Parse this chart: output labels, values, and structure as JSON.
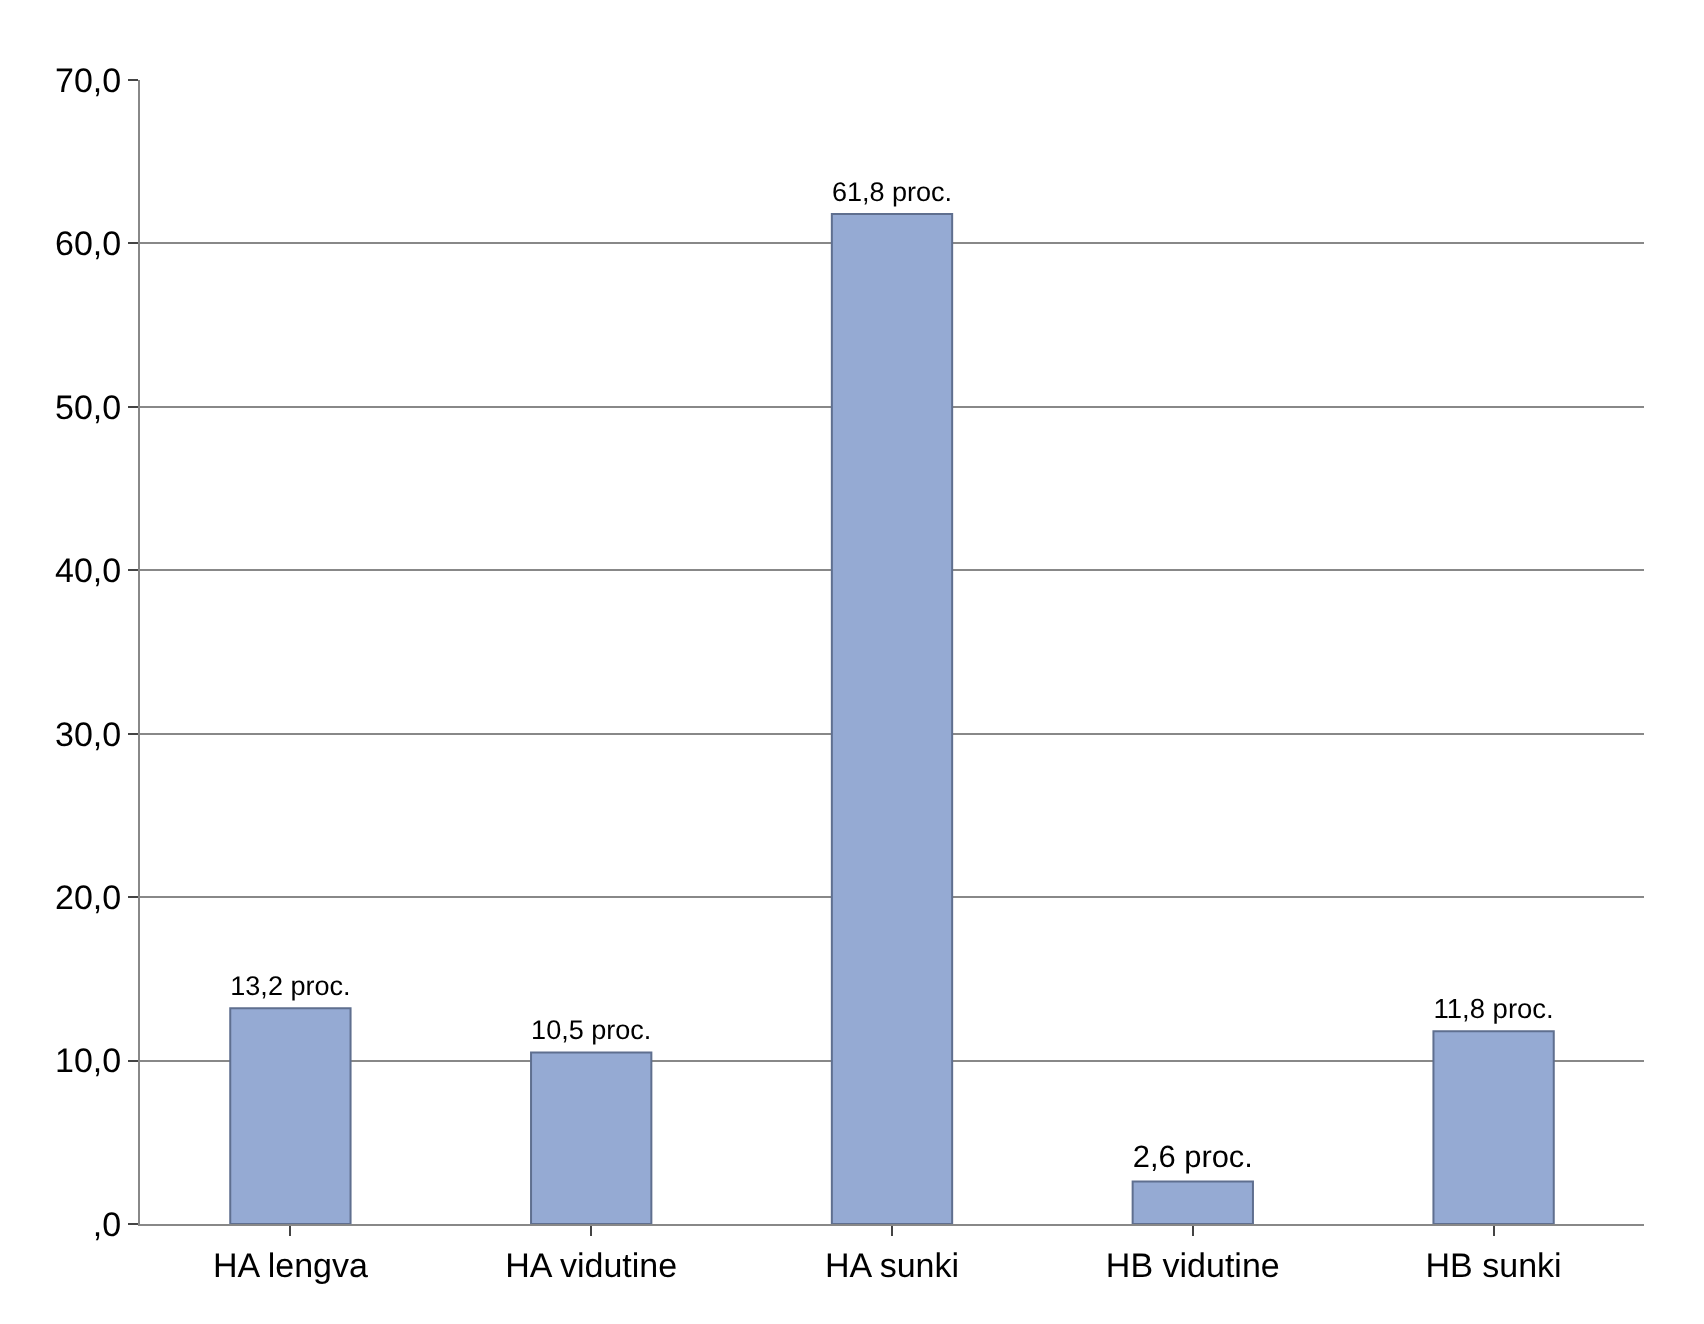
{
  "chart_data": {
    "type": "bar",
    "categories": [
      "HA lengva",
      "HA vidutine",
      "HA sunki",
      "HB vidutine",
      "HB sunki"
    ],
    "values": [
      13.2,
      10.5,
      61.8,
      2.6,
      11.8
    ],
    "value_labels": [
      "13,2 proc.",
      "10,5 proc.",
      "61,8 proc.",
      "2,6 proc.",
      "11,8 proc."
    ],
    "color": "#95aad3",
    "ylim": [
      0,
      70
    ],
    "yticks": [
      {
        "value": 0,
        "label": ",0"
      },
      {
        "value": 10,
        "label": "10,0"
      },
      {
        "value": 20,
        "label": "20,0"
      },
      {
        "value": 30,
        "label": "30,0"
      },
      {
        "value": 40,
        "label": "40,0"
      },
      {
        "value": 50,
        "label": "50,0"
      },
      {
        "value": 60,
        "label": "60,0"
      },
      {
        "value": 70,
        "label": "70,0"
      }
    ],
    "grid": "y"
  }
}
